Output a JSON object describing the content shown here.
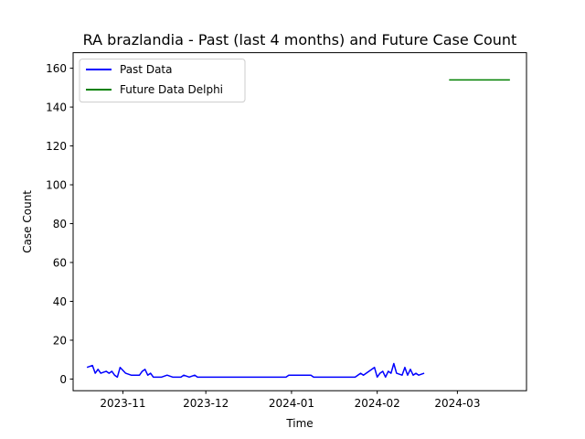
{
  "chart_data": {
    "type": "line",
    "title": "RA brazlandia - Past (last 4 months) and Future Case Count",
    "xlabel": "Time",
    "ylabel": "Case Count",
    "xlim": [
      "2023-10-14",
      "2024-03-26"
    ],
    "ylim": [
      -6,
      168
    ],
    "x_ticks": [
      "2023-11",
      "2023-12",
      "2024-01",
      "2024-02",
      "2024-03"
    ],
    "y_ticks": [
      0,
      20,
      40,
      60,
      80,
      100,
      120,
      140,
      160
    ],
    "grid": false,
    "legend_position": "top-left",
    "series": [
      {
        "name": "Past Data",
        "color": "#0000ff",
        "points": [
          [
            "2023-10-19",
            6
          ],
          [
            "2023-10-21",
            7
          ],
          [
            "2023-10-22",
            3
          ],
          [
            "2023-10-23",
            5
          ],
          [
            "2023-10-24",
            3
          ],
          [
            "2023-10-26",
            4
          ],
          [
            "2023-10-27",
            3
          ],
          [
            "2023-10-28",
            4
          ],
          [
            "2023-10-29",
            2
          ],
          [
            "2023-10-30",
            1
          ],
          [
            "2023-10-31",
            6
          ],
          [
            "2023-11-02",
            3
          ],
          [
            "2023-11-04",
            2
          ],
          [
            "2023-11-07",
            2
          ],
          [
            "2023-11-08",
            4
          ],
          [
            "2023-11-09",
            5
          ],
          [
            "2023-11-10",
            2
          ],
          [
            "2023-11-11",
            3
          ],
          [
            "2023-11-12",
            1
          ],
          [
            "2023-11-15",
            1
          ],
          [
            "2023-11-17",
            2
          ],
          [
            "2023-11-19",
            1
          ],
          [
            "2023-11-22",
            1
          ],
          [
            "2023-11-23",
            2
          ],
          [
            "2023-11-25",
            1
          ],
          [
            "2023-11-27",
            2
          ],
          [
            "2023-11-28",
            1
          ],
          [
            "2023-12-30",
            1
          ],
          [
            "2023-12-31",
            2
          ],
          [
            "2024-01-08",
            2
          ],
          [
            "2024-01-09",
            1
          ],
          [
            "2024-01-24",
            1
          ],
          [
            "2024-01-26",
            3
          ],
          [
            "2024-01-27",
            2
          ],
          [
            "2024-01-28",
            3
          ],
          [
            "2024-01-31",
            6
          ],
          [
            "2024-02-01",
            1
          ],
          [
            "2024-02-02",
            3
          ],
          [
            "2024-02-03",
            4
          ],
          [
            "2024-02-04",
            1
          ],
          [
            "2024-02-05",
            4
          ],
          [
            "2024-02-06",
            3
          ],
          [
            "2024-02-07",
            8
          ],
          [
            "2024-02-08",
            3
          ],
          [
            "2024-02-10",
            2
          ],
          [
            "2024-02-11",
            6
          ],
          [
            "2024-02-12",
            2
          ],
          [
            "2024-02-13",
            5
          ],
          [
            "2024-02-14",
            2
          ],
          [
            "2024-02-15",
            3
          ],
          [
            "2024-02-16",
            2
          ],
          [
            "2024-02-18",
            3
          ]
        ]
      },
      {
        "name": "Future Data Delphi",
        "color": "#008000",
        "points": [
          [
            "2024-02-27",
            154
          ],
          [
            "2024-03-20",
            154
          ]
        ]
      }
    ]
  }
}
